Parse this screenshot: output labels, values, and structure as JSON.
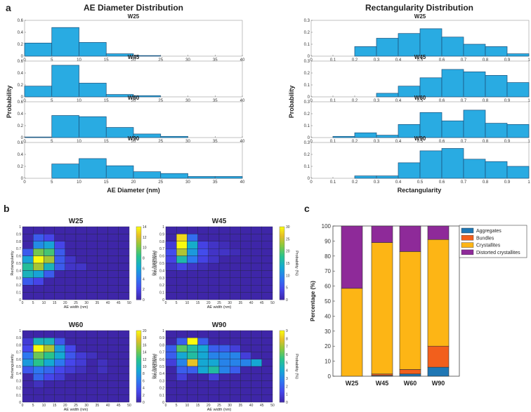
{
  "panels": {
    "a": {
      "letter": "a",
      "title_left": "AE Diameter Distribution",
      "title_right": "Rectangularity Distribution"
    },
    "b": {
      "letter": "b"
    },
    "c": {
      "letter": "c"
    }
  },
  "colors": {
    "hist": "#29abe2",
    "hist_edge": "#1a4f7a",
    "aggregates": "#1f77b4",
    "bundles": "#f25f1c",
    "crystallites": "#fdb515",
    "distorted": "#8e2a99"
  },
  "chart_data": [
    {
      "type": "bar",
      "id": "hist_diameter",
      "title": "AE Diameter Distribution",
      "xlabel": "AE Diameter (nm)",
      "ylabel": "Probability",
      "xlim": [
        0,
        40
      ],
      "ylim": [
        0,
        0.6
      ],
      "xticks": [
        0,
        5,
        10,
        15,
        20,
        25,
        30,
        35,
        40
      ],
      "yticks": [
        0,
        0.2,
        0.4,
        0.6
      ],
      "bin_edges": [
        0,
        5,
        10,
        15,
        20,
        25,
        30,
        35,
        40
      ],
      "series": [
        {
          "name": "W25",
          "values": [
            0.22,
            0.48,
            0.23,
            0.04,
            0.01,
            0,
            0,
            0
          ]
        },
        {
          "name": "W45",
          "values": [
            0.18,
            0.53,
            0.23,
            0.04,
            0.02,
            0,
            0,
            0
          ]
        },
        {
          "name": "W60",
          "values": [
            0.01,
            0.37,
            0.35,
            0.17,
            0.06,
            0.02,
            0,
            0
          ]
        },
        {
          "name": "W90",
          "values": [
            0,
            0.24,
            0.33,
            0.21,
            0.11,
            0.08,
            0.03,
            0.03
          ]
        }
      ]
    },
    {
      "type": "bar",
      "id": "hist_rect",
      "title": "Rectangularity Distribution",
      "xlabel": "Rectangularity",
      "ylabel": "",
      "xlim": [
        0,
        1
      ],
      "ylim": [
        0,
        0.3
      ],
      "xticks": [
        0,
        0.1,
        0.2,
        0.3,
        0.4,
        0.5,
        0.6,
        0.7,
        0.8,
        0.9,
        1
      ],
      "yticks": [
        0,
        0.1,
        0.2,
        0.3
      ],
      "bin_edges": [
        0,
        0.1,
        0.2,
        0.3,
        0.4,
        0.5,
        0.6,
        0.7,
        0.8,
        0.9,
        1.0
      ],
      "series": [
        {
          "name": "W25",
          "values": [
            0,
            0,
            0.08,
            0.15,
            0.19,
            0.23,
            0.16,
            0.1,
            0.08,
            0.02
          ]
        },
        {
          "name": "W45",
          "values": [
            0,
            0,
            0,
            0.03,
            0.09,
            0.16,
            0.23,
            0.21,
            0.18,
            0.12
          ]
        },
        {
          "name": "W60",
          "values": [
            0,
            0.01,
            0.04,
            0.02,
            0.11,
            0.21,
            0.14,
            0.23,
            0.12,
            0.11
          ]
        },
        {
          "name": "W90",
          "values": [
            0,
            0,
            0.02,
            0.02,
            0.13,
            0.23,
            0.25,
            0.16,
            0.14,
            0.1
          ]
        }
      ]
    },
    {
      "type": "heatmap",
      "id": "heatmaps",
      "xlabel": "AE width (nm)",
      "ylabel": "Rectangularity",
      "colorbar_label": "Probability (%)",
      "xlim": [
        0,
        50
      ],
      "ylim": [
        0,
        1
      ],
      "xticks": [
        0,
        5,
        10,
        15,
        20,
        25,
        30,
        35,
        40,
        45,
        50
      ],
      "yticks": [
        0,
        0.1,
        0.2,
        0.3,
        0.4,
        0.5,
        0.6,
        0.7,
        0.8,
        0.9,
        1
      ],
      "maps": [
        {
          "name": "W25",
          "cbar_max": 14,
          "cbar_ticks": [
            0,
            2,
            4,
            6,
            8,
            10,
            12,
            14
          ],
          "cells": [
            [
              1,
              0.8,
              3
            ],
            [
              2,
              0.8,
              2
            ],
            [
              1,
              0.7,
              5
            ],
            [
              2,
              0.7,
              6
            ],
            [
              3,
              0.7,
              2
            ],
            [
              0,
              0.6,
              3
            ],
            [
              1,
              0.6,
              10
            ],
            [
              2,
              0.6,
              9
            ],
            [
              3,
              0.6,
              3
            ],
            [
              0,
              0.5,
              6
            ],
            [
              1,
              0.5,
              14
            ],
            [
              2,
              0.5,
              11
            ],
            [
              3,
              0.5,
              4
            ],
            [
              4,
              0.5,
              1
            ],
            [
              0,
              0.4,
              8
            ],
            [
              1,
              0.4,
              11
            ],
            [
              2,
              0.4,
              7
            ],
            [
              3,
              0.4,
              3
            ],
            [
              0,
              0.3,
              7
            ],
            [
              1,
              0.3,
              6
            ],
            [
              2,
              0.3,
              3
            ],
            [
              0,
              0.2,
              3
            ],
            [
              1,
              0.2,
              2
            ],
            [
              3,
              0.5,
              3
            ],
            [
              4,
              0.4,
              1
            ],
            [
              5,
              0.4,
              1
            ]
          ]
        },
        {
          "name": "W45",
          "cbar_max": 30,
          "cbar_ticks": [
            0,
            5,
            10,
            15,
            20,
            25,
            30
          ],
          "cells": [
            [
              1,
              0.8,
              28
            ],
            [
              2,
              0.8,
              8
            ],
            [
              1,
              0.7,
              30
            ],
            [
              2,
              0.7,
              14
            ],
            [
              3,
              0.7,
              4
            ],
            [
              1,
              0.6,
              24
            ],
            [
              2,
              0.6,
              12
            ],
            [
              3,
              0.6,
              5
            ],
            [
              1,
              0.5,
              16
            ],
            [
              2,
              0.5,
              9
            ],
            [
              3,
              0.5,
              4
            ],
            [
              4,
              0.5,
              2
            ],
            [
              0,
              0.7,
              3
            ],
            [
              0,
              0.6,
              5
            ],
            [
              0,
              0.5,
              4
            ],
            [
              0,
              0.4,
              2
            ],
            [
              1,
              0.4,
              4
            ],
            [
              2,
              0.4,
              2
            ],
            [
              4,
              0.7,
              2
            ],
            [
              5,
              0.7,
              1
            ],
            [
              4,
              0.6,
              2
            ],
            [
              5,
              0.6,
              2
            ],
            [
              6,
              0.6,
              1
            ],
            [
              3,
              0.4,
              1
            ]
          ]
        },
        {
          "name": "W60",
          "cbar_max": 20,
          "cbar_ticks": [
            0,
            2,
            4,
            6,
            8,
            10,
            12,
            14,
            16,
            18,
            20
          ],
          "cells": [
            [
              1,
              0.8,
              10
            ],
            [
              2,
              0.8,
              10
            ],
            [
              3,
              0.8,
              4
            ],
            [
              1,
              0.7,
              20
            ],
            [
              2,
              0.7,
              16
            ],
            [
              3,
              0.7,
              8
            ],
            [
              4,
              0.7,
              3
            ],
            [
              1,
              0.6,
              14
            ],
            [
              2,
              0.6,
              12
            ],
            [
              3,
              0.6,
              9
            ],
            [
              4,
              0.6,
              4
            ],
            [
              1,
              0.5,
              12
            ],
            [
              2,
              0.5,
              9
            ],
            [
              3,
              0.5,
              6
            ],
            [
              4,
              0.5,
              3
            ],
            [
              0,
              0.6,
              6
            ],
            [
              0,
              0.5,
              8
            ],
            [
              0,
              0.4,
              4
            ],
            [
              1,
              0.4,
              6
            ],
            [
              2,
              0.4,
              5
            ],
            [
              3,
              0.4,
              3
            ],
            [
              0,
              0.7,
              3
            ],
            [
              1,
              0.3,
              5
            ],
            [
              2,
              0.3,
              3
            ],
            [
              5,
              0.5,
              2
            ],
            [
              5,
              0.6,
              2
            ],
            [
              4,
              0.4,
              2
            ],
            [
              5,
              0.4,
              1
            ],
            [
              6,
              0.6,
              1
            ],
            [
              3,
              0.3,
              2
            ],
            [
              1,
              0.2,
              1
            ],
            [
              0,
              0.8,
              2
            ],
            [
              7,
              0.5,
              1
            ],
            [
              7,
              0.4,
              1
            ]
          ]
        },
        {
          "name": "W90",
          "cbar_max": 9,
          "cbar_ticks": [
            0,
            1,
            2,
            3,
            4,
            5,
            6,
            7,
            8,
            9
          ],
          "cells": [
            [
              2,
              0.8,
              9
            ],
            [
              1,
              0.7,
              6
            ],
            [
              2,
              0.7,
              5
            ],
            [
              3,
              0.7,
              4
            ],
            [
              1,
              0.6,
              4
            ],
            [
              2,
              0.6,
              5
            ],
            [
              3,
              0.6,
              4
            ],
            [
              4,
              0.6,
              3
            ],
            [
              5,
              0.6,
              3
            ],
            [
              6,
              0.6,
              3
            ],
            [
              1,
              0.5,
              3
            ],
            [
              2,
              0.5,
              8
            ],
            [
              3,
              0.5,
              4
            ],
            [
              4,
              0.5,
              4
            ],
            [
              5,
              0.5,
              3
            ],
            [
              6,
              0.5,
              3
            ],
            [
              7,
              0.5,
              3
            ],
            [
              8,
              0.5,
              4
            ],
            [
              3,
              0.4,
              4
            ],
            [
              4,
              0.4,
              5
            ],
            [
              5,
              0.4,
              3
            ],
            [
              6,
              0.4,
              2
            ],
            [
              2,
              0.4,
              2
            ],
            [
              1,
              0.4,
              2
            ],
            [
              0,
              0.6,
              2
            ],
            [
              1,
              0.8,
              2
            ],
            [
              3,
              0.8,
              2
            ],
            [
              0,
              0.7,
              2
            ],
            [
              4,
              0.7,
              2
            ],
            [
              5,
              0.7,
              2
            ],
            [
              6,
              0.7,
              1
            ],
            [
              7,
              0.6,
              1
            ],
            [
              1,
              0.3,
              1
            ],
            [
              0,
              0.5,
              1
            ],
            [
              4,
              0.3,
              1
            ]
          ]
        }
      ]
    },
    {
      "type": "bar",
      "id": "stacked",
      "stacked": true,
      "categories": [
        "W25",
        "W45",
        "W60",
        "W90"
      ],
      "ylabel": "Percentage (%)",
      "ylim": [
        0,
        100
      ],
      "yticks": [
        0,
        10,
        20,
        30,
        40,
        50,
        60,
        70,
        80,
        90,
        100
      ],
      "legend_position": "top-right",
      "series": [
        {
          "name": "Aggregates",
          "values": [
            0,
            0.5,
            1.5,
            6
          ]
        },
        {
          "name": "Bundles",
          "values": [
            0,
            1,
            3,
            14
          ]
        },
        {
          "name": "Crystallites",
          "values": [
            58.5,
            87.5,
            78.5,
            71
          ]
        },
        {
          "name": "Distorted crystallites",
          "values": [
            41.5,
            11,
            17,
            9
          ]
        }
      ]
    }
  ]
}
